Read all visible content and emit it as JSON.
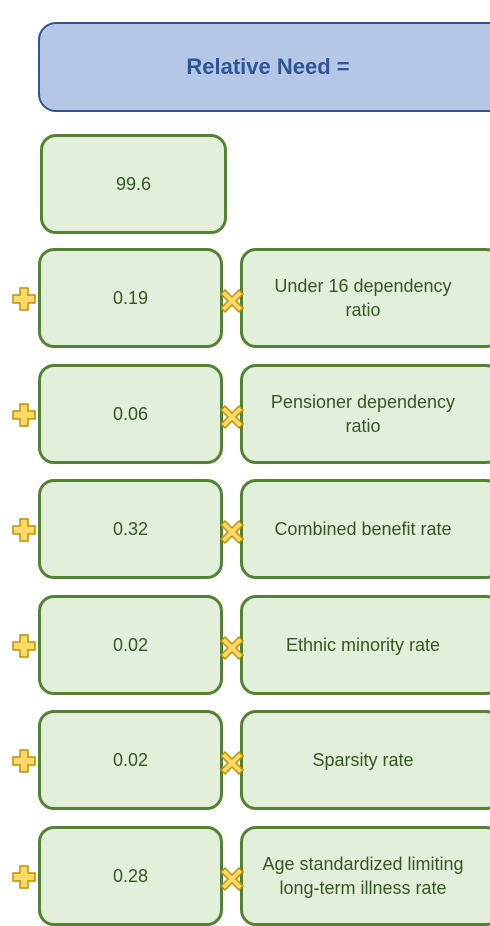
{
  "title": "Relative Need =",
  "constant": "99.6",
  "terms": [
    {
      "coefficient": "0.19",
      "label": "Under 16 dependency ratio"
    },
    {
      "coefficient": "0.06",
      "label": "Pensioner dependency ratio"
    },
    {
      "coefficient": "0.32",
      "label": "Combined benefit rate"
    },
    {
      "coefficient": "0.02",
      "label": "Ethnic minority rate"
    },
    {
      "coefficient": "0.02",
      "label": "Sparsity rate"
    },
    {
      "coefficient": "0.28",
      "label": "Age standardized limiting long-term illness rate"
    }
  ]
}
